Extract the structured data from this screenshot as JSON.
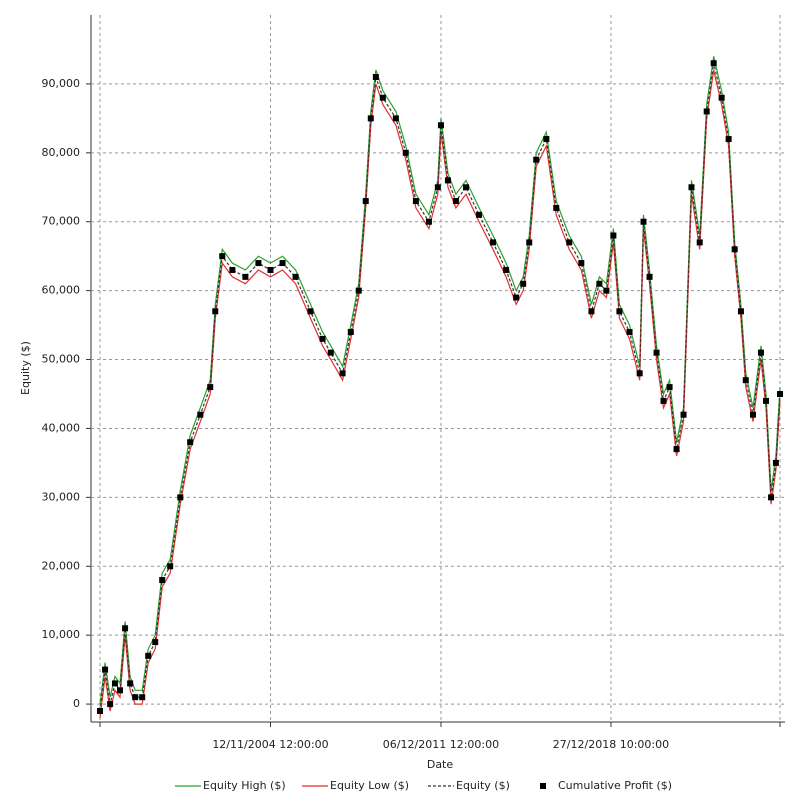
{
  "chart_data": {
    "type": "line",
    "x_label": "Date",
    "y_label": "Equity ($)",
    "x": [
      1997.79,
      1998.0,
      1998.21,
      1998.41,
      1998.62,
      1998.83,
      1999.04,
      1999.25,
      1999.54,
      1999.79,
      2000.08,
      2000.37,
      2000.7,
      2001.12,
      2001.53,
      2001.95,
      2002.36,
      2002.57,
      2002.86,
      2003.28,
      2003.82,
      2004.36,
      2004.86,
      2005.36,
      2005.9,
      2006.52,
      2007.02,
      2007.36,
      2007.85,
      2008.19,
      2008.52,
      2008.81,
      2009.02,
      2009.23,
      2009.52,
      2010.06,
      2010.47,
      2010.89,
      2011.43,
      2011.8,
      2011.93,
      2012.22,
      2012.55,
      2012.97,
      2013.51,
      2014.09,
      2014.63,
      2015.05,
      2015.34,
      2015.59,
      2015.88,
      2016.3,
      2016.71,
      2017.25,
      2017.75,
      2018.17,
      2018.5,
      2018.79,
      2019.08,
      2019.33,
      2019.75,
      2020.17,
      2020.33,
      2020.58,
      2020.87,
      2021.16,
      2021.41,
      2021.7,
      2021.99,
      2022.32,
      2022.66,
      2022.95,
      2023.24,
      2023.57,
      2023.86,
      2024.11,
      2024.37,
      2024.57,
      2024.87,
      2025.2,
      2025.41,
      2025.62,
      2025.82,
      2025.99
    ],
    "series": [
      {
        "name": "Equity High ($)",
        "color": "#2ca02c",
        "style": "line",
        "values": [
          0,
          6000,
          1000,
          4000,
          3000,
          12000,
          4000,
          2000,
          2000,
          8000,
          10000,
          19000,
          21000,
          31000,
          39000,
          43000,
          47000,
          58000,
          66000,
          64000,
          63000,
          65000,
          64000,
          65000,
          63000,
          58000,
          54000,
          52000,
          49000,
          55000,
          61000,
          74000,
          86000,
          92000,
          89000,
          86000,
          81000,
          74000,
          71000,
          76000,
          85000,
          77000,
          74000,
          76000,
          72000,
          68000,
          64000,
          60000,
          62000,
          68000,
          80000,
          83000,
          73000,
          68000,
          65000,
          58000,
          62000,
          61000,
          69000,
          58000,
          55000,
          49000,
          71000,
          63000,
          52000,
          45000,
          47000,
          38000,
          43000,
          76000,
          68000,
          87000,
          94000,
          89000,
          83000,
          67000,
          58000,
          48000,
          43000,
          52000,
          45000,
          31000,
          36000,
          46000
        ]
      },
      {
        "name": "Equity Low ($)",
        "color": "#e03030",
        "style": "line",
        "values": [
          -2000,
          4000,
          -1000,
          2000,
          1000,
          10000,
          2000,
          0,
          0,
          6000,
          8000,
          17000,
          19000,
          29000,
          37000,
          41000,
          45000,
          56000,
          64000,
          62000,
          61000,
          63000,
          62000,
          63000,
          61000,
          56000,
          52000,
          50000,
          47000,
          53000,
          59000,
          72000,
          84000,
          90000,
          87000,
          84000,
          79000,
          72000,
          69000,
          74000,
          83000,
          75000,
          72000,
          74000,
          70000,
          66000,
          62000,
          58000,
          60000,
          66000,
          78000,
          81000,
          71000,
          66000,
          63000,
          56000,
          60000,
          59000,
          67000,
          56000,
          53000,
          47000,
          69000,
          61000,
          50000,
          43000,
          45000,
          36000,
          41000,
          74000,
          66000,
          85000,
          92000,
          87000,
          81000,
          65000,
          56000,
          46000,
          41000,
          50000,
          43000,
          29000,
          34000,
          44000
        ]
      },
      {
        "name": "Equity ($)",
        "color": "#333333",
        "style": "dashed",
        "values": [
          -1000,
          5000,
          0,
          3000,
          2000,
          11000,
          3000,
          1000,
          1000,
          7000,
          9000,
          18000,
          20000,
          30000,
          38000,
          42000,
          46000,
          57000,
          65000,
          63000,
          62000,
          64000,
          63000,
          64000,
          62000,
          57000,
          53000,
          51000,
          48000,
          54000,
          60000,
          73000,
          85000,
          91000,
          88000,
          85000,
          80000,
          73000,
          70000,
          75000,
          84000,
          76000,
          73000,
          75000,
          71000,
          67000,
          63000,
          59000,
          61000,
          67000,
          79000,
          82000,
          72000,
          67000,
          64000,
          57000,
          61000,
          60000,
          68000,
          57000,
          54000,
          48000,
          70000,
          62000,
          51000,
          44000,
          46000,
          37000,
          42000,
          75000,
          67000,
          86000,
          93000,
          88000,
          82000,
          66000,
          57000,
          47000,
          42000,
          51000,
          44000,
          30000,
          35000,
          45000
        ]
      },
      {
        "name": "Cumulative Profit ($)",
        "color": "#000000",
        "style": "markers",
        "values": [
          -1000,
          5000,
          0,
          3000,
          2000,
          11000,
          3000,
          1000,
          1000,
          7000,
          9000,
          18000,
          20000,
          30000,
          38000,
          42000,
          46000,
          57000,
          65000,
          63000,
          62000,
          64000,
          63000,
          64000,
          62000,
          57000,
          53000,
          51000,
          48000,
          54000,
          60000,
          73000,
          85000,
          91000,
          88000,
          85000,
          80000,
          73000,
          70000,
          75000,
          84000,
          76000,
          73000,
          75000,
          71000,
          67000,
          63000,
          59000,
          61000,
          67000,
          79000,
          82000,
          72000,
          67000,
          64000,
          57000,
          61000,
          60000,
          68000,
          57000,
          54000,
          48000,
          70000,
          62000,
          51000,
          44000,
          46000,
          37000,
          42000,
          75000,
          67000,
          86000,
          93000,
          88000,
          82000,
          66000,
          57000,
          47000,
          42000,
          51000,
          44000,
          30000,
          35000,
          45000
        ]
      }
    ],
    "xlim": [
      1997.79,
      2025.99
    ],
    "xticks": [
      {
        "value": 2004.86,
        "label": "12/11/2004 12:00:00"
      },
      {
        "value": 2011.93,
        "label": "06/12/2011 12:00:00"
      },
      {
        "value": 2018.98,
        "label": "27/12/2018 10:00:00"
      }
    ],
    "ylim": [
      -2600,
      100000
    ],
    "yticks": [
      0,
      {
        "value": 10000,
        "label": "10,000"
      },
      {
        "value": 20000,
        "label": "20,000"
      },
      {
        "value": 30000,
        "label": "30,000"
      },
      {
        "value": 40000,
        "label": "40,000"
      },
      {
        "value": 50000,
        "label": "50,000"
      },
      {
        "value": 60000,
        "label": "60,000"
      },
      {
        "value": 70000,
        "label": "70,000"
      },
      {
        "value": 80000,
        "label": "80,000"
      },
      {
        "value": 90000,
        "label": "90,000"
      }
    ],
    "grid": true,
    "legend": "bottom"
  }
}
